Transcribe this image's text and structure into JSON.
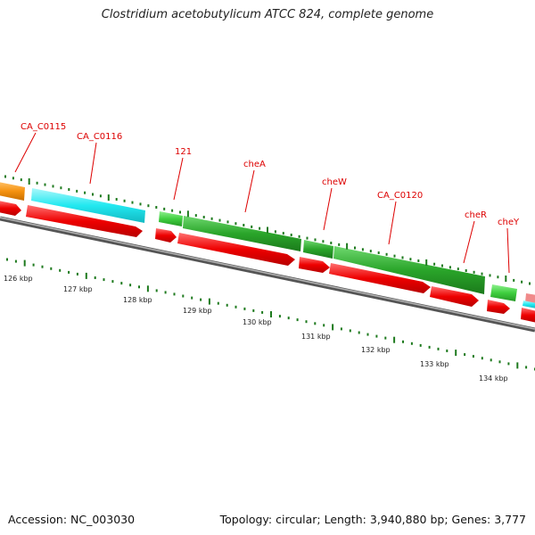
{
  "title": "Clostridium acetobutylicum ATCC 824, complete genome",
  "footer": {
    "accession": "Accession: NC_003030",
    "summary": "Topology: circular; Length: 3,940,880 bp; Genes: 3,777"
  },
  "colors": {
    "label": "#dd0000",
    "backbone": "#777777",
    "tick": "#1e7a1e",
    "orange": "#f5920f",
    "cyan": "#22e8f0",
    "green_light": "#3fcf3f",
    "green_dark": "#2aa52a",
    "red": "#ee0000",
    "pink": "#f08a8a"
  },
  "gene_labels": [
    {
      "text": "CA_C0115"
    },
    {
      "text": "CA_C0116"
    },
    {
      "text": "121"
    },
    {
      "text": "cheA"
    },
    {
      "text": "cheW"
    },
    {
      "text": "CA_C0120"
    },
    {
      "text": "cheR"
    },
    {
      "text": "cheY"
    }
  ],
  "kbp_labels": [
    "126 kbp",
    "127 kbp",
    "128 kbp",
    "129 kbp",
    "130 kbp",
    "131 kbp",
    "132 kbp",
    "133 kbp",
    "134 kbp"
  ]
}
